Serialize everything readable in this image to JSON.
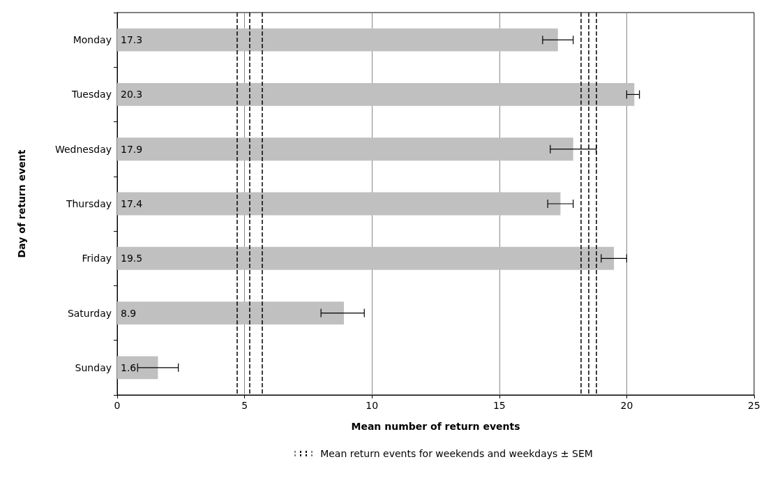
{
  "chart_data": {
    "type": "bar",
    "orientation": "horizontal",
    "xlabel": "Mean number of return events",
    "ylabel": "Day of return event",
    "categories": [
      "Monday",
      "Tuesday",
      "Wednesday",
      "Thursday",
      "Friday",
      "Saturday",
      "Sunday"
    ],
    "values": [
      17.3,
      20.3,
      17.9,
      17.4,
      19.5,
      8.9,
      1.6
    ],
    "errors": [
      [
        16.7,
        17.9
      ],
      [
        20.0,
        20.5
      ],
      [
        17.0,
        18.8
      ],
      [
        16.9,
        17.9
      ],
      [
        19.0,
        20.0
      ],
      [
        8.0,
        9.7
      ],
      [
        0.8,
        2.4
      ]
    ],
    "color": "#c0c0c0",
    "data_labels": true,
    "xlim": [
      0,
      25
    ],
    "xticks": [
      0,
      5,
      10,
      15,
      20,
      25
    ],
    "grid": "x",
    "ref_lines": [
      {
        "axis": "x",
        "value": 18.5,
        "label": null,
        "color": "#000000",
        "line_style": "dashed"
      },
      {
        "axis": "x",
        "value": 18.2,
        "label": null,
        "color": "#000000",
        "line_style": "dashed"
      },
      {
        "axis": "x",
        "value": 18.8,
        "label": null,
        "color": "#000000",
        "line_style": "dashed"
      },
      {
        "axis": "x",
        "value": 5.2,
        "label": null,
        "color": "#000000",
        "line_style": "dashed"
      },
      {
        "axis": "x",
        "value": 4.7,
        "label": null,
        "color": "#000000",
        "line_style": "dashed"
      },
      {
        "axis": "x",
        "value": 5.7,
        "label": null,
        "color": "#000000",
        "line_style": "dashed"
      }
    ],
    "annotations": [
      "Mean return events for weekends and weekdays ± SEM"
    ]
  }
}
